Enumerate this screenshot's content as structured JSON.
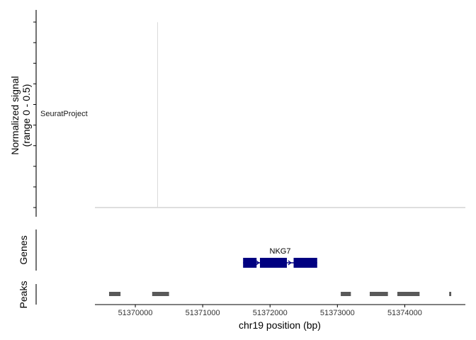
{
  "chart_data": {
    "type": "genome-track",
    "region": {
      "chrom": "chr19",
      "start": 51369400,
      "end": 51374900
    },
    "x_axis": {
      "label": "chr19 position (bp)",
      "ticks": [
        51370000,
        51371000,
        51372000,
        51373000,
        51374000
      ],
      "tick_labels": [
        "51370000",
        "51371000",
        "51372000",
        "51373000",
        "51374000"
      ]
    },
    "coverage_track": {
      "ylabel_line1": "Normalized signal",
      "ylabel_line2": "(range 0 - 0.5)",
      "ylim": [
        0,
        0.5
      ],
      "group_label": "SeuratProject",
      "spikes": [
        {
          "x": 51370330,
          "y": 0.49
        }
      ]
    },
    "genes_track": {
      "ylabel": "Genes",
      "color": "#000080",
      "genes": [
        {
          "name": "NKG7",
          "strand": "-",
          "start": 51371600,
          "end": 51372700,
          "exons": [
            [
              51371600,
              51371800
            ],
            [
              51371850,
              51372250
            ],
            [
              51372350,
              51372700
            ]
          ]
        }
      ]
    },
    "peaks_track": {
      "ylabel": "Peaks",
      "color": "#595959",
      "peaks": [
        [
          51369610,
          51369780
        ],
        [
          51370250,
          51370500
        ],
        [
          51373050,
          51373200
        ],
        [
          51373480,
          51373750
        ],
        [
          51373890,
          51374220
        ],
        [
          51374660,
          51374690
        ]
      ]
    }
  }
}
